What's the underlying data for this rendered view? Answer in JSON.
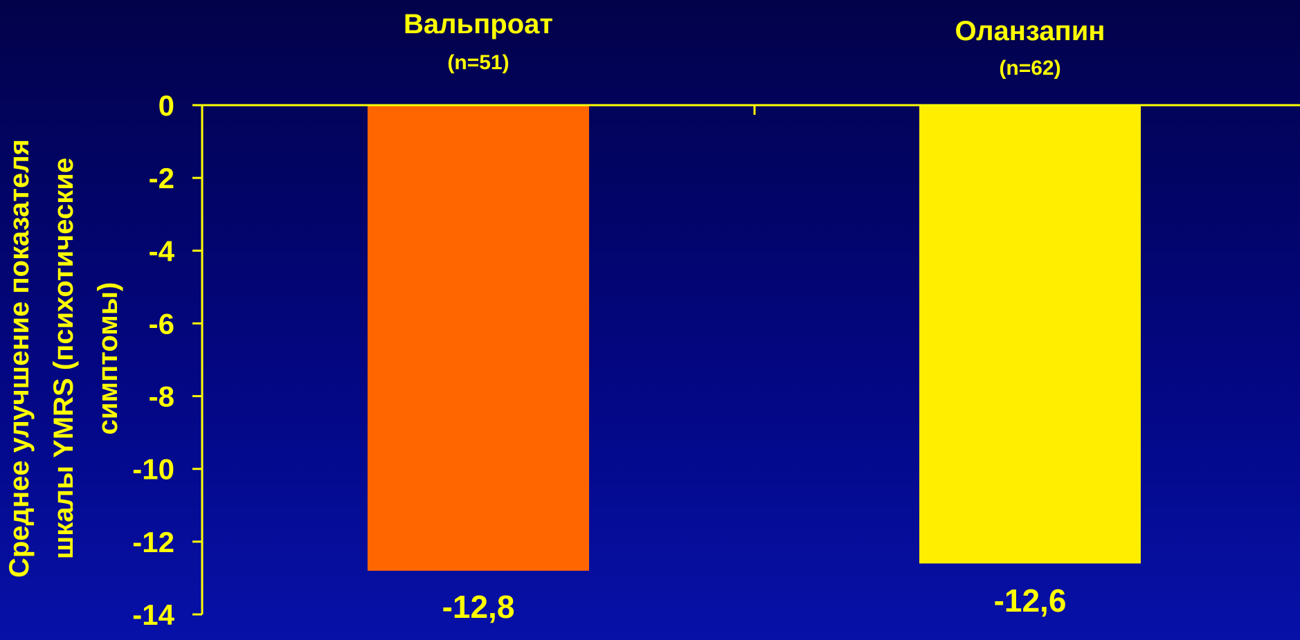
{
  "chart_data": {
    "type": "bar",
    "categories": [
      "Вальпроат",
      "Оланзапин"
    ],
    "category_sublabels": [
      "(n=51)",
      "(n=62)"
    ],
    "values": [
      -12.8,
      -12.6
    ],
    "value_labels": [
      "-12,8",
      "-12,6"
    ],
    "bar_colors": [
      "#ff6600",
      "#ffee00"
    ],
    "ylabel": "Среднее улучшение показателя шкалы YMRS (психотические симптомы)",
    "ylim": [
      -14,
      0
    ],
    "yticks": [
      0,
      -2,
      -4,
      -6,
      -8,
      -10,
      -12,
      -14
    ],
    "ytick_labels": [
      "0",
      "-2",
      "-4",
      "-6",
      "-8",
      "-10",
      "-12",
      "-14"
    ],
    "grid": false,
    "legend": "none"
  },
  "colors": {
    "axis": "#ffff00",
    "text": "#ffff00",
    "background_top": "#02024a",
    "background_bottom": "#0711a8"
  }
}
